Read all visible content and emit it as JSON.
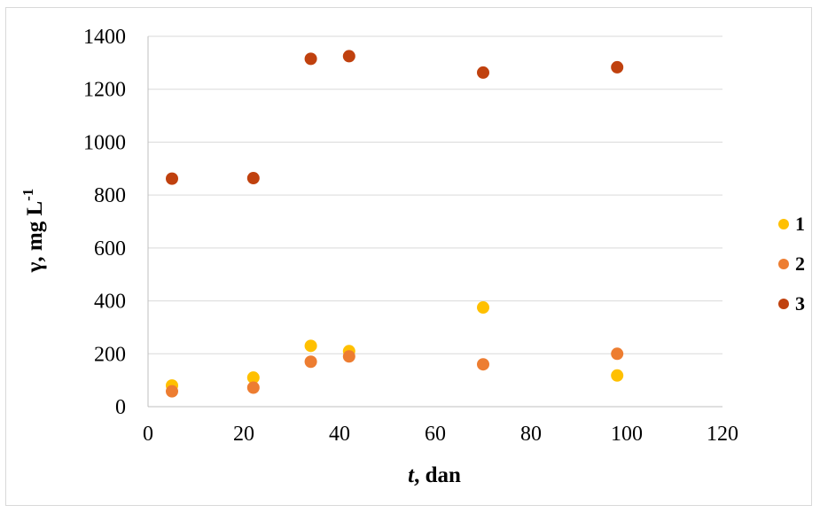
{
  "chart_data": {
    "type": "scatter",
    "title": "",
    "xlabel": {
      "var": "t",
      "rest": ", dan"
    },
    "ylabel": {
      "base": "γ, mg L",
      "sup": "-1"
    },
    "xlim": [
      0,
      120
    ],
    "ylim": [
      0,
      1400
    ],
    "xticks": [
      0,
      20,
      40,
      60,
      80,
      100,
      120
    ],
    "yticks": [
      0,
      200,
      400,
      600,
      800,
      1000,
      1200,
      1400
    ],
    "grid": "horizontal",
    "legend_position": "right",
    "series": [
      {
        "name": "1",
        "color": "#FFC000",
        "points": [
          [
            5,
            80
          ],
          [
            22,
            110
          ],
          [
            34,
            230
          ],
          [
            42,
            210
          ],
          [
            70,
            375
          ],
          [
            98,
            118
          ]
        ]
      },
      {
        "name": "2",
        "color": "#ED7D31",
        "points": [
          [
            5,
            58
          ],
          [
            22,
            72
          ],
          [
            34,
            170
          ],
          [
            42,
            190
          ],
          [
            70,
            160
          ],
          [
            98,
            200
          ]
        ]
      },
      {
        "name": "3",
        "color": "#C0410E",
        "points": [
          [
            5,
            862
          ],
          [
            22,
            864
          ],
          [
            34,
            1315
          ],
          [
            42,
            1325
          ],
          [
            70,
            1263
          ],
          [
            98,
            1283
          ]
        ]
      }
    ]
  }
}
